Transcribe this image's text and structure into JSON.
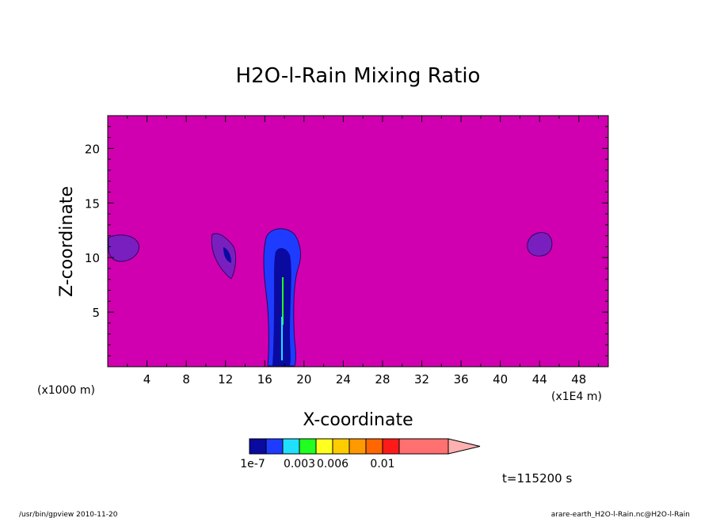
{
  "chart_data": {
    "type": "heatmap",
    "title": "H2O-l-Rain Mixing Ratio",
    "xlabel": "X-coordinate",
    "ylabel": "Z-coordinate",
    "x_unit_left": "(x1000 m)",
    "x_unit_right": "(x1E4 m)",
    "xlim": [
      0,
      51
    ],
    "ylim": [
      0,
      23
    ],
    "x_ticks": [
      4,
      8,
      12,
      16,
      20,
      24,
      28,
      32,
      36,
      40,
      44,
      48
    ],
    "x_tick_labels": [
      "4",
      "8",
      "12",
      "16",
      "20",
      "24",
      "28",
      "32",
      "36",
      "40",
      "44",
      "48"
    ],
    "y_ticks": [
      5,
      10,
      15,
      20
    ],
    "y_tick_labels": [
      "5",
      "10",
      "15",
      "20"
    ],
    "background_color": "#d000b0",
    "colorbar": {
      "colors": [
        "#0a0aa0",
        "#1e3cff",
        "#20e0ff",
        "#20ff20",
        "#ffff20",
        "#ffcc00",
        "#ff9900",
        "#ff6600",
        "#ff1a1a",
        "#ff7070"
      ],
      "extend_color": "#ffb0b0",
      "labels": [
        "1e-7",
        "0.003",
        "0.006",
        "0.01"
      ],
      "label_positions": [
        0,
        2,
        4,
        7
      ]
    },
    "time_label": "t=115200 s"
  },
  "footer": {
    "left": "/usr/bin/gpview  2010-11-20",
    "right": "arare-earth_H2O-l-Rain.nc@H2O-l-Rain"
  }
}
